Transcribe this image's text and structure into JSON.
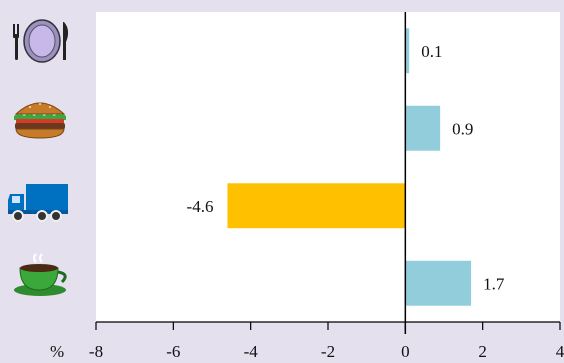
{
  "chart_data": {
    "type": "bar",
    "orientation": "horizontal",
    "categories": [
      "plate-fork-knife-icon",
      "hamburger-icon",
      "delivery-truck-icon",
      "coffee-cup-icon"
    ],
    "values": [
      0.1,
      0.9,
      -4.6,
      1.7
    ],
    "value_labels": [
      "0.1",
      "0.9",
      "-4.6",
      "1.7"
    ],
    "xlim": [
      -8,
      4
    ],
    "xticks": [
      -8,
      -6,
      -4,
      -2,
      0,
      2,
      4
    ],
    "xtick_labels": [
      "-8",
      "-6",
      "-4",
      "-2",
      "0",
      "2",
      "4"
    ],
    "x_unit_label": "%",
    "title": "",
    "xlabel": "",
    "ylabel": "",
    "grid": false,
    "legend": "none",
    "colors": {
      "positive": "#92cddc",
      "negative": "#ffc000",
      "plot_background": "#ffffff",
      "page_background": "#e4e0ee",
      "axis": "#000000",
      "truck": "#0070c0",
      "plate": "#b39ddb",
      "burger_bun": "#c77a2a",
      "lettuce": "#3aa83a",
      "cup": "#3aa83a"
    }
  }
}
